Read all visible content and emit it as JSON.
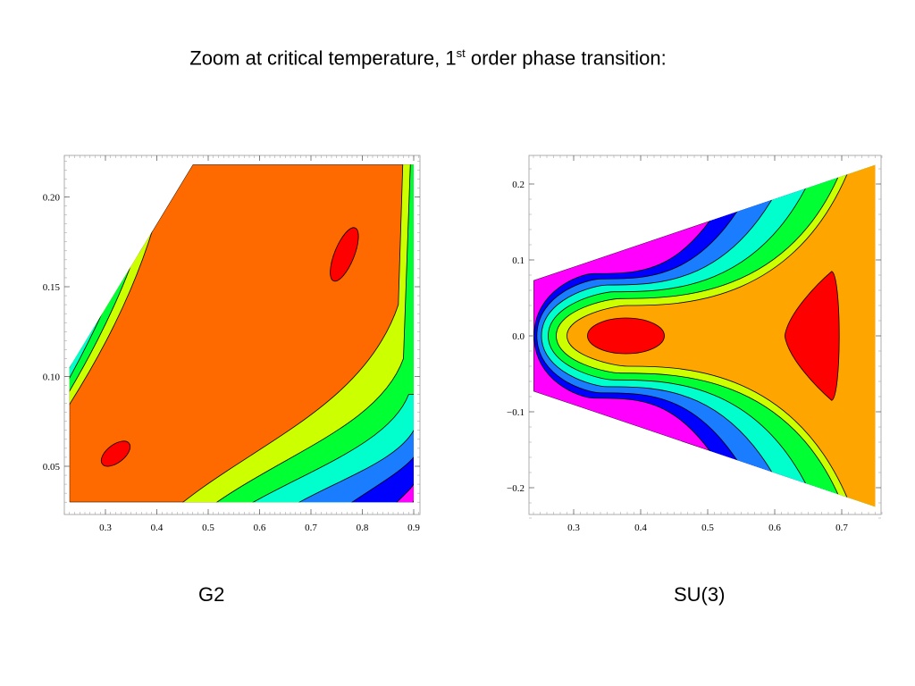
{
  "title": {
    "prefix": "Zoom at critical temperature, 1",
    "sup": "st",
    "suffix": " order phase transition:"
  },
  "colors": {
    "levels": [
      "#ff00ff",
      "#0000ff",
      "#1a7cff",
      "#00ffcc",
      "#00ff33",
      "#ccff00",
      "#ff6600",
      "#ff0000"
    ],
    "su3_fill": "#ffa500",
    "g2_fill": "#ff6a00",
    "contour_line": "#000000"
  },
  "chart_data": [
    {
      "type": "contour",
      "label": "G2",
      "xlim": [
        0.22,
        0.91
      ],
      "ylim": [
        0.03,
        0.223
      ],
      "xticks": [
        "0.3",
        "0.4",
        "0.5",
        "0.6",
        "0.7",
        "0.8",
        "0.9"
      ],
      "xtick_values": [
        0.3,
        0.4,
        0.5,
        0.6,
        0.7,
        0.8,
        0.9
      ],
      "yticks": [
        "0.05",
        "0.10",
        "0.15",
        "0.20"
      ],
      "ytick_values": [
        0.05,
        0.1,
        0.15,
        0.2
      ],
      "domain": "wedge bounded by the line from (0.23, 0.105) to (0.47, 0.218), the top edge y = 0.218, the right edge x = 0.90 and the bottom edge y = 0.03",
      "minima": [
        {
          "x": 0.32,
          "y": 0.057,
          "shape": "small oval"
        },
        {
          "x": 0.765,
          "y": 0.168,
          "shape": "elongated oval"
        }
      ],
      "levels": [
        "magenta",
        "blue",
        "azure",
        "cyan",
        "green",
        "yellow-green",
        "orange",
        "red"
      ]
    },
    {
      "type": "contour",
      "label": "SU(3)",
      "xlim": [
        0.232,
        0.76
      ],
      "ylim": [
        -0.24,
        0.235
      ],
      "xticks": [
        "0.3",
        "0.4",
        "0.5",
        "0.6",
        "0.7"
      ],
      "xtick_values": [
        0.3,
        0.4,
        0.5,
        0.6,
        0.7
      ],
      "yticks": [
        "0.2",
        "0.1",
        "0.0",
        "−0.1",
        "−0.2"
      ],
      "ytick_values": [
        0.2,
        0.1,
        0.0,
        -0.1,
        -0.2
      ],
      "domain": "wedge opening to the right, from x = 0.24 (|y| < 0.073) to x = 0.75 (|y| < 0.225)",
      "minima": [
        {
          "x": 0.378,
          "y": 0.0,
          "shape": "horizontal oval"
        },
        {
          "x": 0.662,
          "y": 0.0,
          "shape": "rounded triangle"
        }
      ],
      "levels": [
        "magenta",
        "blue",
        "azure",
        "cyan",
        "green",
        "yellow-green",
        "orange",
        "red"
      ]
    }
  ]
}
